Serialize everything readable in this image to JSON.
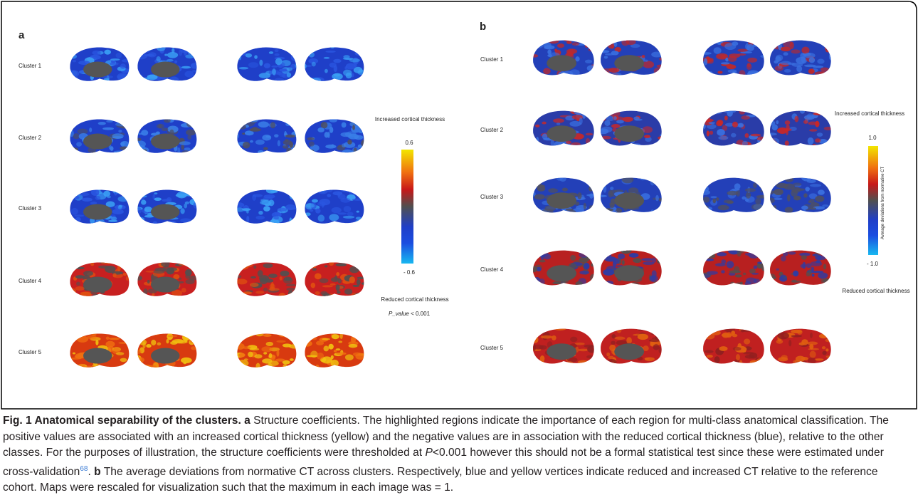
{
  "panel_a": {
    "label": "a",
    "clusters": [
      "Cluster 1",
      "Cluster 2",
      "Cluster 3",
      "Cluster 4",
      "Cluster 5"
    ],
    "colorbar": {
      "top_caption": "Increased cortical thickness",
      "max": "0.6",
      "min": "- 0.6",
      "bottom_caption": "Reduced cortical thickness"
    },
    "pvalue": {
      "label": "P_value",
      "text": "< 0.001"
    }
  },
  "panel_b": {
    "label": "b",
    "clusters": [
      "Cluster 1",
      "Cluster 2",
      "Cluster 3",
      "Cluster 4",
      "Cluster 5"
    ],
    "colorbar": {
      "top_caption": "Increased cortical thickness",
      "max": "1.0",
      "min": "- 1.0",
      "axis_label": "Average deviations from normative CT",
      "bottom_caption": "Reduced cortical thickness"
    }
  },
  "caption": {
    "title": "Fig. 1 Anatomical separability of the clusters.",
    "a_label": "a",
    "a_text": "Structure coefficients. The highlighted regions indicate the importance of each region for multi-class anatomical classification. The positive values are associated with an increased cortical thickness (yellow) and the negative values are in association with the reduced cortical thickness (blue), relative to the other classes. For the purposes of illustration, the structure coefficients were thresholded at",
    "p": "P",
    "a_text2": "<0.001 however this should not be a formal statistical test since these were estimated under cross-validation",
    "ref": "68",
    "a_end": ".",
    "b_label": "b",
    "b_text": "The average deviations from normative CT across clusters. Respectively, blue and yellow vertices indicate reduced and increased CT relative to the reference cohort. Maps were rescaled for visualization such that the maximum in each image was = 1."
  }
}
